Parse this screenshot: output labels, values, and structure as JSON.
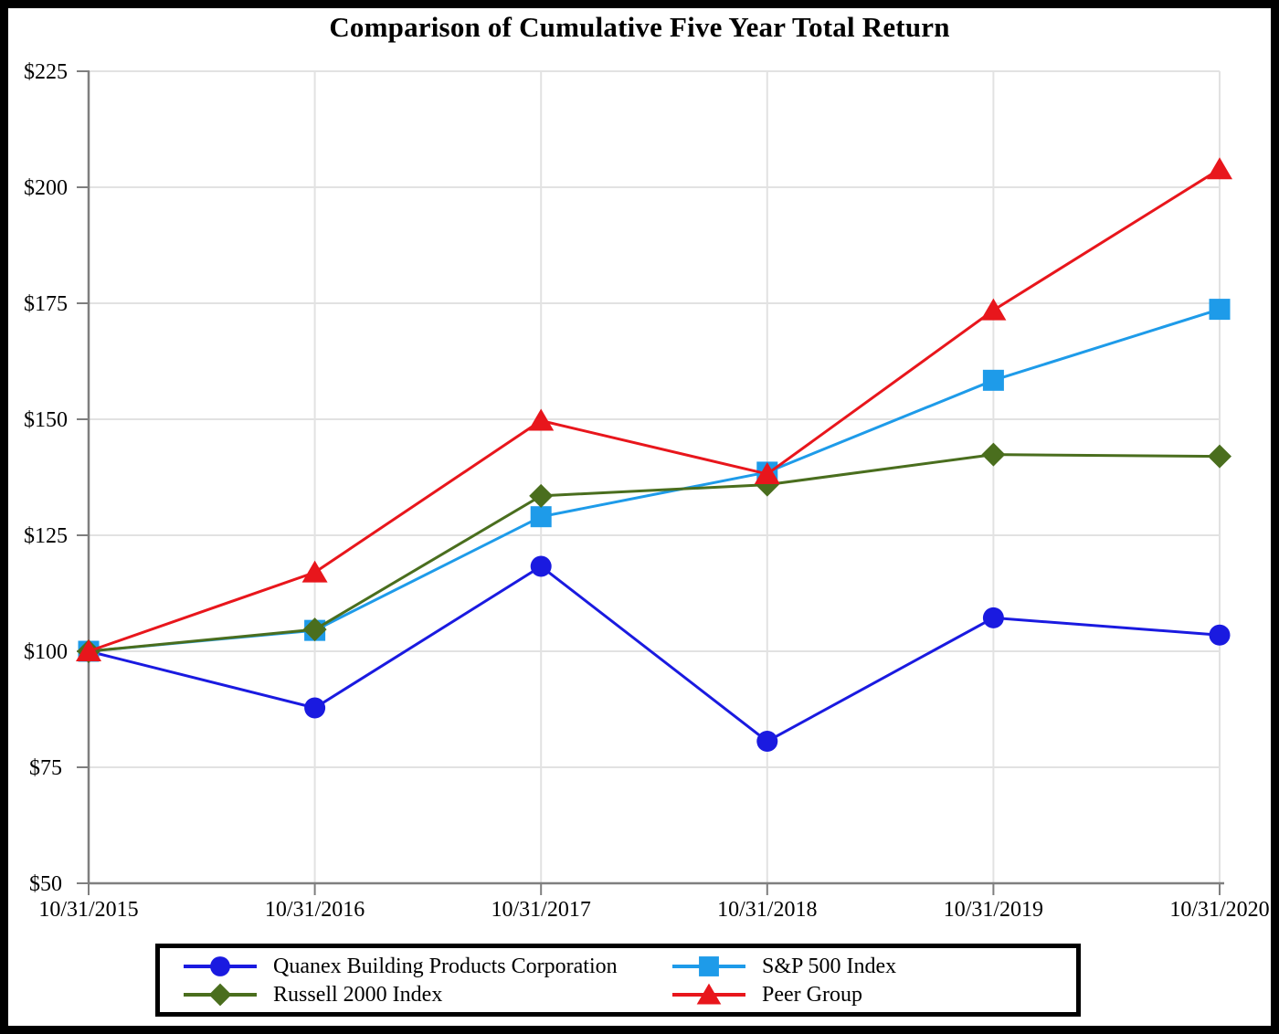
{
  "title": "Comparison of Cumulative Five Year Total Return",
  "colors": {
    "background": "#ffffff",
    "frame_border": "#000000",
    "gridline": "#e2e2e2",
    "axis": "#7f7f7f",
    "text": "#000000"
  },
  "chart_data": {
    "type": "line",
    "title": "Comparison of Cumulative Five Year Total Return",
    "categories": [
      "10/31/2015",
      "10/31/2016",
      "10/31/2017",
      "10/31/2018",
      "10/31/2019",
      "10/31/2020"
    ],
    "series": [
      {
        "name": "Quanex Building Products Corporation",
        "marker": "circle",
        "color": "#1a1ae0",
        "values": [
          100,
          87.8,
          118.3,
          80.6,
          107.2,
          103.5
        ]
      },
      {
        "name": "S&P 500 Index",
        "marker": "square",
        "color": "#1e9be9",
        "values": [
          100,
          104.5,
          129.0,
          138.6,
          158.4,
          173.7
        ]
      },
      {
        "name": "Russell 2000 Index",
        "marker": "diamond",
        "color": "#4a6e1e",
        "values": [
          100,
          104.7,
          133.5,
          135.9,
          142.4,
          142.0
        ]
      },
      {
        "name": "Peer Group",
        "marker": "triangle",
        "color": "#e8161c",
        "values": [
          100,
          117.0,
          149.7,
          138.2,
          173.5,
          203.9
        ]
      }
    ],
    "xlabel": "",
    "ylabel": "",
    "ylim": [
      50,
      225
    ],
    "y_ticks": [
      "$225",
      "$200",
      "$175",
      "$150",
      "$125",
      "$100",
      "$75",
      "$50"
    ],
    "y_tick_values": [
      225,
      200,
      175,
      150,
      125,
      100,
      75,
      50
    ],
    "grid": true,
    "legend_position": "bottom"
  }
}
